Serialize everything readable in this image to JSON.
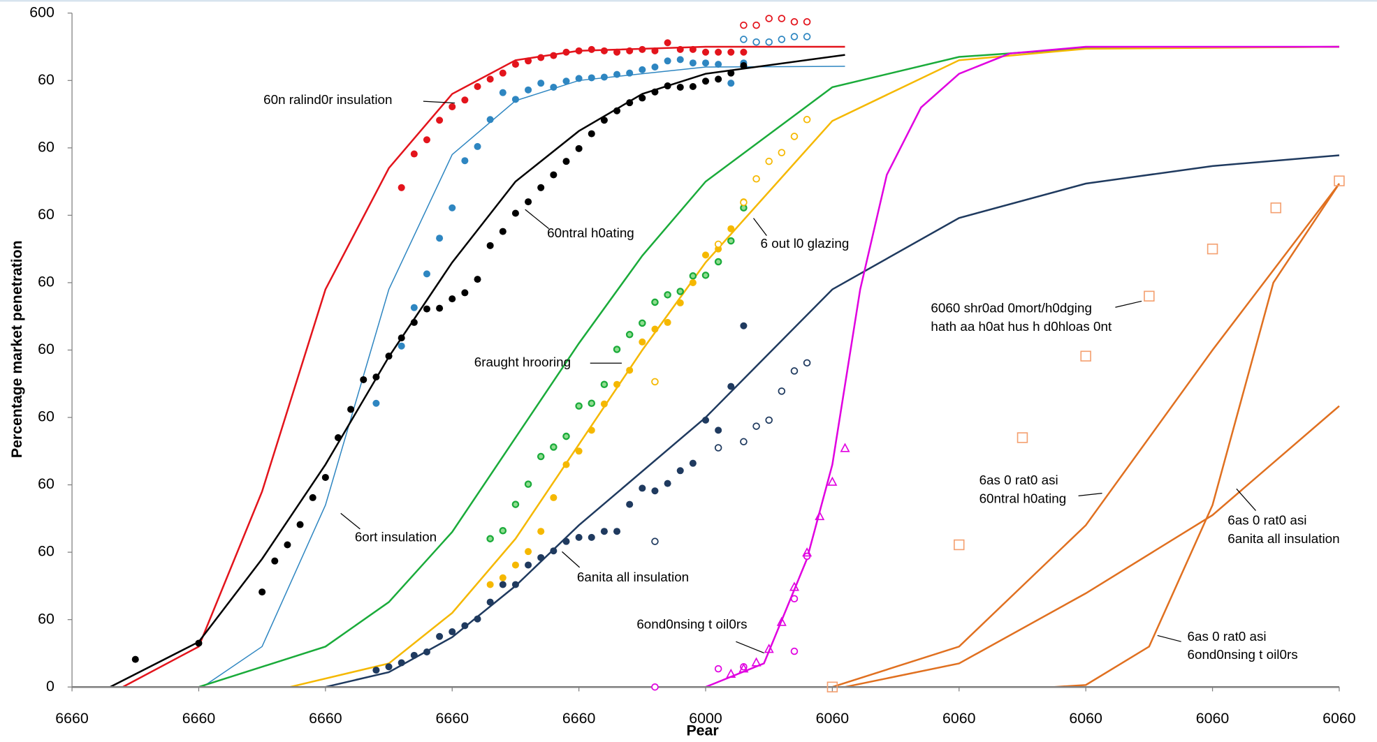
{
  "chart_data": {
    "type": "line",
    "x_label": "Pear",
    "y_label": "Percentage market penetration",
    "xlim": [
      1950,
      2050
    ],
    "ylim": [
      0,
      100
    ],
    "xticks": [
      {
        "value": 1950,
        "label": "6660"
      },
      {
        "value": 1960,
        "label": "6660"
      },
      {
        "value": 1970,
        "label": "6660"
      },
      {
        "value": 1980,
        "label": "6660"
      },
      {
        "value": 1990,
        "label": "6660"
      },
      {
        "value": 2000,
        "label": "6000"
      },
      {
        "value": 2010,
        "label": "6060"
      },
      {
        "value": 2020,
        "label": "6060"
      },
      {
        "value": 2030,
        "label": "6060"
      },
      {
        "value": 2040,
        "label": "6060"
      },
      {
        "value": 2050,
        "label": "6060"
      }
    ],
    "yticks": [
      0,
      {
        "value": 10,
        "label": "60"
      },
      {
        "value": 20,
        "label": "60"
      },
      {
        "value": 30,
        "label": "60"
      },
      {
        "value": 40,
        "label": "60"
      },
      {
        "value": 50,
        "label": "60"
      },
      {
        "value": 60,
        "label": "60"
      },
      {
        "value": 70,
        "label": "60"
      },
      {
        "value": 80,
        "label": "60"
      },
      {
        "value": 90,
        "label": "60"
      },
      {
        "value": 100,
        "label": "600"
      }
    ],
    "grid": false,
    "series": [
      {
        "style": "line",
        "color": "#e3141c",
        "width": 2,
        "x": [
          1954,
          1960,
          1965,
          1970,
          1975,
          1980,
          1985,
          1990,
          2000,
          2011
        ],
        "values": [
          0,
          6,
          29,
          59,
          77,
          88,
          93,
          94.4,
          95,
          95
        ]
      },
      {
        "style": "line",
        "color": "#2e86c1",
        "width": 1.2,
        "x": [
          1960.3,
          1965,
          1970,
          1975,
          1980,
          1985,
          1990,
          2000,
          2011
        ],
        "values": [
          0,
          6,
          27,
          59,
          79,
          87,
          90,
          92,
          92.1
        ]
      },
      {
        "style": "line",
        "color": "#000000",
        "width": 2,
        "x": [
          1953,
          1960,
          1965,
          1970,
          1975,
          1980,
          1985,
          1990,
          1995,
          2000,
          2011
        ],
        "values": [
          0,
          6.7,
          19,
          33,
          49,
          63,
          75,
          82.5,
          88,
          91,
          93.8
        ]
      },
      {
        "style": "line",
        "color": "#1aab3a",
        "width": 2,
        "x": [
          1960,
          1970,
          1975,
          1980,
          1985,
          1990,
          1995,
          2000,
          2010,
          2020,
          2030,
          2050
        ],
        "values": [
          0,
          6,
          12.6,
          23,
          37,
          51,
          64,
          75,
          89,
          93.5,
          94.8,
          95
        ]
      },
      {
        "style": "line",
        "color": "#f5b800",
        "width": 2,
        "x": [
          1967.2,
          1975,
          1980,
          1985,
          1990,
          1995,
          2000,
          2010,
          2020,
          2030,
          2050
        ],
        "values": [
          0,
          3.5,
          11,
          22,
          36,
          50,
          63,
          84,
          93,
          94.7,
          95
        ]
      },
      {
        "style": "line",
        "color": "#1f3a5f",
        "width": 2,
        "x": [
          1970,
          1975,
          1980,
          1985,
          1990,
          2000,
          2010,
          2020,
          2030,
          2040,
          2050
        ],
        "values": [
          0,
          2.2,
          7.4,
          15,
          24,
          40,
          59,
          69.6,
          74.7,
          77.3,
          78.9
        ]
      },
      {
        "style": "line",
        "color": "#e000e0",
        "width": 2,
        "x": [
          2000,
          2004.6,
          2008,
          2010,
          2012.2,
          2014.3,
          2017,
          2020,
          2024,
          2030,
          2050
        ],
        "values": [
          0,
          3.5,
          19,
          33,
          59,
          76,
          86,
          91,
          94,
          95,
          95
        ]
      },
      {
        "style": "line",
        "color": "#e07020",
        "width": 2,
        "x": [
          2010,
          2020,
          2030,
          2040,
          2050
        ],
        "values": [
          0,
          6,
          24,
          50,
          74.7
        ]
      },
      {
        "style": "line",
        "color": "#e07020",
        "width": 2,
        "x": [
          2011,
          2020,
          2030,
          2040,
          2050
        ],
        "values": [
          0,
          3.5,
          13.9,
          25.5,
          41.7
        ]
      },
      {
        "style": "line",
        "color": "#e07020",
        "width": 2,
        "x": [
          2027.5,
          2030,
          2035,
          2040,
          2044.8,
          2050
        ],
        "values": [
          0,
          0.3,
          6,
          27,
          60,
          74.7
        ]
      },
      {
        "style": "line",
        "color": "#7f7f7f",
        "width": 2,
        "x": [
          1950,
          2050
        ],
        "values": [
          0,
          0
        ]
      },
      {
        "style": "markers",
        "marker": "dot",
        "color": "#e3141c",
        "x": [
          1976,
          1977,
          1978,
          1979,
          1980,
          1981,
          1982,
          1983,
          1984,
          1985,
          1986,
          1987,
          1988,
          1989,
          1990,
          1991,
          1992,
          1993,
          1994,
          1995,
          1996,
          1997,
          1998,
          1999,
          2000,
          2001,
          2002,
          2003
        ],
        "values": [
          74.1,
          79.1,
          81.2,
          84.1,
          86.1,
          87.1,
          89.1,
          90.2,
          91.1,
          92.4,
          92.9,
          93.4,
          93.7,
          94.2,
          94.4,
          94.6,
          94.4,
          94.2,
          94.4,
          94.6,
          94.4,
          95.6,
          94.6,
          94.6,
          94.2,
          94.2,
          94.2,
          94.2
        ]
      },
      {
        "style": "markers",
        "marker": "open-circle",
        "color": "#e3141c",
        "x": [
          2003,
          2004,
          2005,
          2006,
          2007,
          2008
        ],
        "values": [
          98.2,
          98.2,
          99.2,
          99.2,
          98.7,
          98.7
        ]
      },
      {
        "style": "markers",
        "marker": "dot",
        "color": "#2e86c1",
        "x": [
          1974,
          1976,
          1977,
          1978,
          1979,
          1980,
          1981,
          1982,
          1983,
          1984,
          1985,
          1986,
          1987,
          1988,
          1989,
          1990,
          1991,
          1992,
          1993,
          1994,
          1995,
          1996,
          1997,
          1998,
          1999,
          2000,
          2001,
          2002,
          2003
        ],
        "values": [
          42.1,
          50.6,
          56.3,
          61.3,
          66.6,
          71.1,
          78.1,
          80.2,
          84.2,
          88.2,
          87.2,
          88.6,
          89.6,
          89,
          89.9,
          90.3,
          90.4,
          90.5,
          90.9,
          91.1,
          91.6,
          92,
          92.9,
          93.1,
          92.6,
          92.6,
          92.4,
          89.6,
          92.6
        ]
      },
      {
        "style": "markers",
        "marker": "open-circle",
        "color": "#2e86c1",
        "x": [
          2003,
          2004,
          2005,
          2006,
          2007,
          2008
        ],
        "values": [
          96.1,
          95.7,
          95.7,
          96.1,
          96.5,
          96.5
        ]
      },
      {
        "style": "markers",
        "marker": "dot",
        "color": "#000000",
        "x": [
          1955,
          1960,
          1965,
          1966,
          1967,
          1968,
          1969,
          1970,
          1971,
          1972,
          1973,
          1974,
          1975,
          1976,
          1977,
          1978,
          1979,
          1980,
          1981,
          1982,
          1983,
          1984,
          1985,
          1986,
          1987,
          1988,
          1989,
          1990,
          1991,
          1992,
          1993,
          1994,
          1995,
          1996,
          1997,
          1998,
          1999,
          2000,
          2001,
          2002,
          2003
        ],
        "values": [
          4.1,
          6.5,
          14.1,
          18.7,
          21.1,
          24.1,
          28.1,
          31.1,
          37,
          41.2,
          45.6,
          46,
          49.1,
          51.8,
          54.1,
          56.1,
          56.2,
          57.6,
          58.5,
          60.5,
          65.5,
          67.6,
          70.3,
          72,
          74.1,
          76,
          78,
          79.9,
          82.1,
          84.1,
          85.5,
          86.7,
          87.4,
          88.3,
          89.2,
          89,
          89.1,
          89.9,
          90.2,
          91.1,
          92.2
        ]
      },
      {
        "style": "markers",
        "marker": "dot-light",
        "color": "#1aab3a",
        "x": [
          1983,
          1984,
          1985,
          1986,
          1987,
          1988,
          1989,
          1990,
          1991,
          1992,
          1993,
          1994,
          1995,
          1996,
          1997,
          1998,
          1999,
          2000,
          2001,
          2002,
          2003
        ],
        "values": [
          22,
          23.2,
          27.1,
          30.1,
          34.2,
          35.6,
          37.2,
          41.7,
          42.1,
          44.9,
          50.1,
          52.3,
          54,
          57.1,
          58.2,
          58.7,
          61,
          61.1,
          63.1,
          66.2,
          71.1
        ]
      },
      {
        "style": "markers",
        "marker": "dot",
        "color": "#f5b800",
        "x": [
          1983,
          1984,
          1985,
          1986,
          1987,
          1988,
          1989,
          1990,
          1991,
          1992,
          1993,
          1994,
          1995,
          1996,
          1997,
          1998,
          1999,
          2000,
          2001,
          2002,
          2003
        ],
        "values": [
          15.2,
          16.2,
          18.1,
          20.1,
          23.1,
          28.1,
          33,
          35,
          38.1,
          42,
          44.9,
          47,
          51.2,
          53.1,
          54.1,
          57,
          60,
          64.1,
          65,
          68,
          72
        ]
      },
      {
        "style": "markers",
        "marker": "open-circle",
        "color": "#f5b800",
        "x": [
          1996,
          2001,
          2003,
          2004,
          2005,
          2006,
          2007,
          2008
        ],
        "values": [
          45.3,
          65.7,
          71.9,
          75.4,
          78,
          79.3,
          81.7,
          84.2
        ]
      },
      {
        "style": "markers",
        "marker": "dot",
        "color": "#1f3a5f",
        "x": [
          1974,
          1975,
          1976,
          1977,
          1978,
          1979,
          1980,
          1981,
          1982,
          1983,
          1984,
          1985,
          1986,
          1987,
          1988,
          1989,
          1990,
          1991,
          1992,
          1993,
          1994,
          1995,
          1996,
          1997,
          1998,
          1999,
          2000,
          2001,
          2002,
          2003
        ],
        "values": [
          2.5,
          3,
          3.6,
          4.7,
          5.2,
          7.5,
          8.2,
          9.1,
          10.1,
          12.6,
          15.2,
          15.2,
          18.1,
          19.2,
          20.2,
          21.6,
          22.2,
          22.2,
          23.1,
          23.1,
          27.1,
          29.5,
          29.1,
          30.2,
          32.1,
          33.2,
          39.6,
          38.1,
          44.6,
          53.6
        ]
      },
      {
        "style": "markers",
        "marker": "open-circle",
        "color": "#1f3a5f",
        "x": [
          1996,
          2001,
          2003,
          2004,
          2005,
          2006,
          2007,
          2008
        ],
        "values": [
          21.6,
          35.5,
          36.4,
          38.7,
          39.6,
          43.9,
          46.9,
          48.1
        ]
      },
      {
        "style": "markers",
        "marker": "open-circle",
        "color": "#e000e0",
        "x": [
          1996,
          2001,
          2003,
          2007,
          2007,
          2008
        ],
        "values": [
          0,
          2.7,
          3,
          5.3,
          13.1,
          19.4
        ]
      },
      {
        "style": "markers",
        "marker": "triangle",
        "color": "#e000e0",
        "x": [
          2002,
          2003,
          2004,
          2005,
          2006,
          2007,
          2008,
          2009,
          2010,
          2011
        ],
        "values": [
          1.9,
          2.7,
          3.6,
          5.6,
          9.6,
          14.8,
          19.9,
          25.3,
          30.4,
          35.4
        ]
      },
      {
        "style": "markers",
        "marker": "square",
        "color": "#f4a070",
        "x": [
          2010,
          2020,
          2025,
          2030,
          2035,
          2040,
          2045,
          2050
        ],
        "values": [
          0,
          21.1,
          37,
          49.1,
          58,
          65,
          71.1,
          75.1
        ]
      }
    ],
    "annotations": [
      {
        "lines": [
          "60n   ralind0r insulation"
        ]
      },
      {
        "lines": [
          "60ntral h0ating"
        ]
      },
      {
        "lines": [
          "6ort insulation"
        ]
      },
      {
        "lines": [
          "6raught hrooring"
        ]
      },
      {
        "lines": [
          "6 out l0 glazing"
        ]
      },
      {
        "lines": [
          "6anita     all insulation"
        ]
      },
      {
        "lines": [
          "6060 shr0ad 0mort/h0dging",
          "hath    aa   h0at hus   h d0hloas   0nt"
        ]
      },
      {
        "lines": [
          "6ond0nsing t oil0rs"
        ]
      },
      {
        "lines": [
          "6as   0 rat0 asi",
          "60ntral h0ating"
        ]
      },
      {
        "lines": [
          "6as   0 rat0 asi",
          "6anita     all insulation"
        ]
      },
      {
        "lines": [
          "6as   0 rat0 asi",
          "6ond0nsing t oil0rs"
        ]
      }
    ]
  }
}
